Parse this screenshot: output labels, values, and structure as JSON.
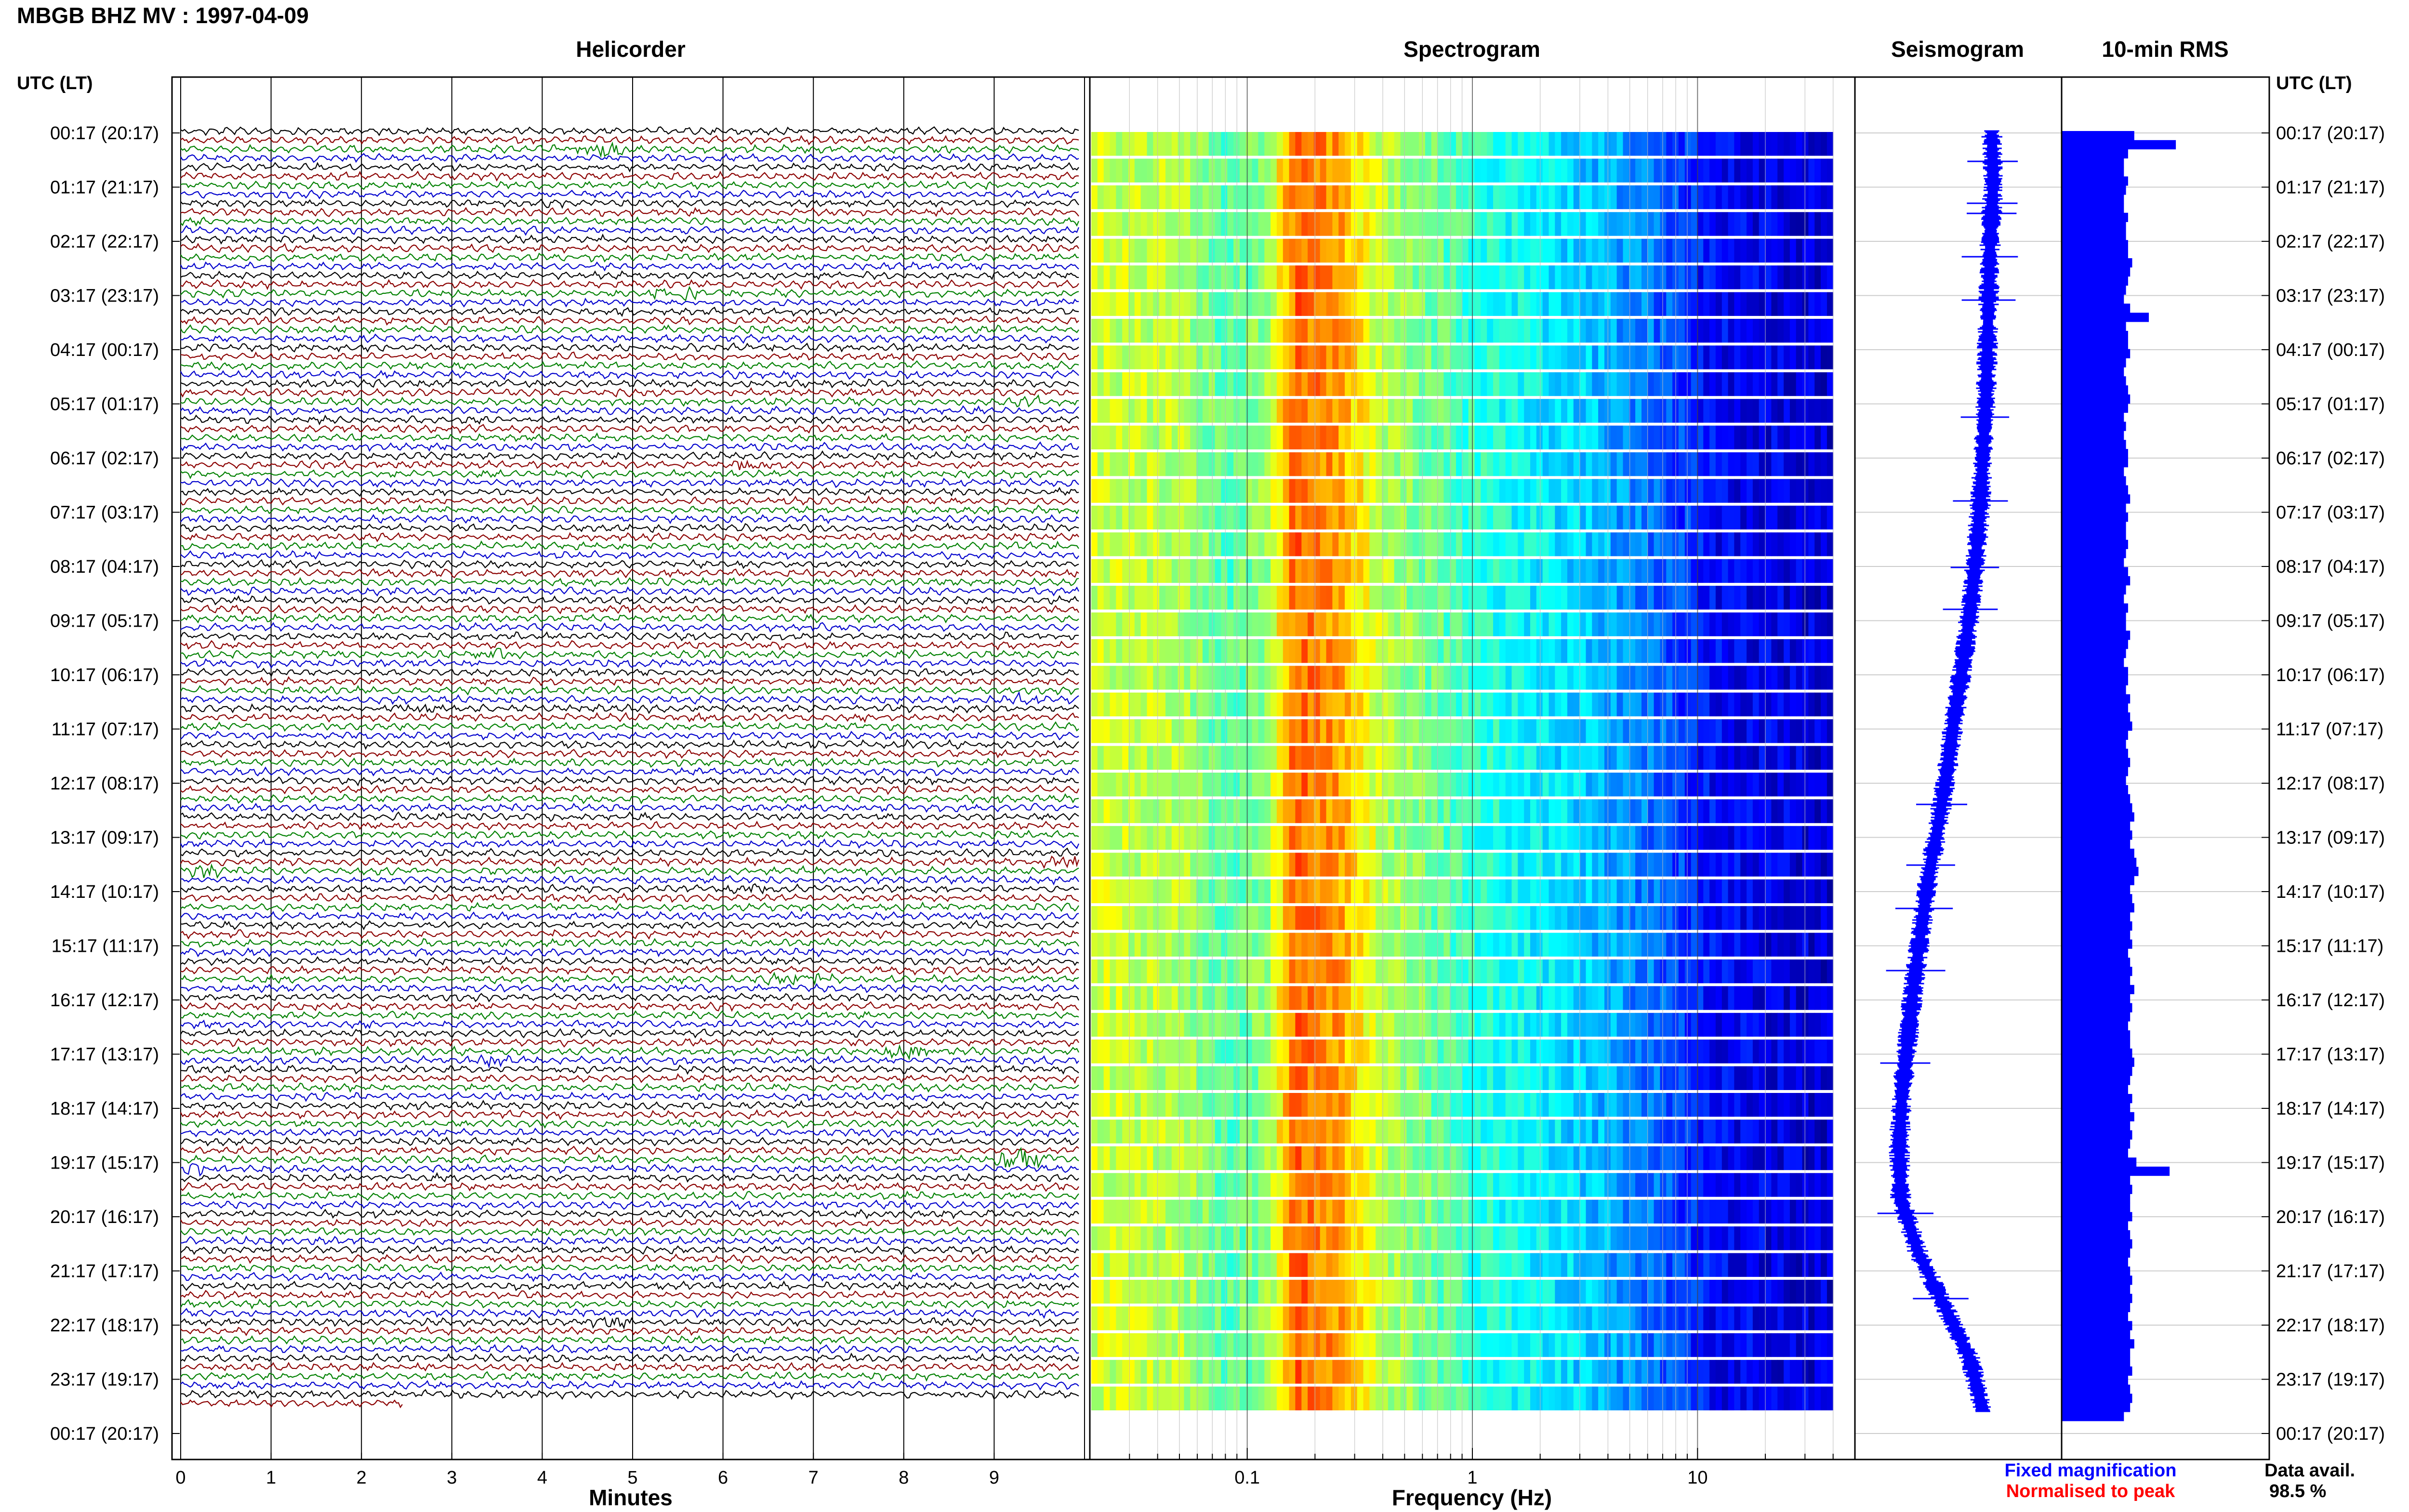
{
  "title": "MBGB BHZ MV : 1997-04-09",
  "panels": {
    "helicorder": "Helicorder",
    "spectrogram": "Spectrogram",
    "seismogram": "Seismogram",
    "rms": "10-min RMS"
  },
  "axis_header_left": "UTC (LT)",
  "axis_header_right": "UTC (LT)",
  "time_labels": [
    "00:17 (20:17)",
    "01:17 (21:17)",
    "02:17 (22:17)",
    "03:17 (23:17)",
    "04:17 (00:17)",
    "05:17 (01:17)",
    "06:17 (02:17)",
    "07:17 (03:17)",
    "08:17 (04:17)",
    "09:17 (05:17)",
    "10:17 (06:17)",
    "11:17 (07:17)",
    "12:17 (08:17)",
    "13:17 (09:17)",
    "14:17 (10:17)",
    "15:17 (11:17)",
    "16:17 (12:17)",
    "17:17 (13:17)",
    "18:17 (14:17)",
    "19:17 (15:17)",
    "20:17 (16:17)",
    "21:17 (17:17)",
    "22:17 (18:17)",
    "23:17 (19:17)",
    "00:17 (20:17)"
  ],
  "helicorder_xlabel": "Minutes",
  "spectrogram_xlabel": "Frequency (Hz)",
  "legend": {
    "fixed": "Fixed magnification",
    "normalised": "Normalised to peak",
    "data_avail_label": "Data avail.",
    "data_avail_value": "98.5 %"
  },
  "colors": {
    "trace_cycle": [
      "#000000",
      "#8b0000",
      "#008000",
      "#0000cd"
    ],
    "seismogram": "#0000ff",
    "rms_bar": "#0000ff",
    "legend_fixed": "#0000ff",
    "legend_normalised": "#ff0000"
  },
  "chart_data": [
    {
      "type": "line",
      "panel": "Helicorder",
      "xlabel": "Minutes",
      "x_ticks": [
        "0",
        "1",
        "2",
        "3",
        "4",
        "5",
        "6",
        "7",
        "8",
        "9"
      ],
      "xlim": [
        0,
        10
      ],
      "rows": 142,
      "row_minutes": 10,
      "events": [
        {
          "row": 2,
          "minute": 4.7,
          "strength": 3
        },
        {
          "row": 18,
          "minute": 5.5,
          "strength": 3
        },
        {
          "row": 30,
          "minute": 9.3,
          "strength": 2
        },
        {
          "row": 37,
          "minute": 6.2,
          "strength": 2
        },
        {
          "row": 58,
          "minute": 3.6,
          "strength": 2
        },
        {
          "row": 63,
          "minute": 9.2,
          "strength": 2
        },
        {
          "row": 64,
          "minute": 2.7,
          "strength": 2
        },
        {
          "row": 81,
          "minute": 9.8,
          "strength": 3
        },
        {
          "row": 82,
          "minute": 0.3,
          "strength": 3
        },
        {
          "row": 84,
          "minute": 6.4,
          "strength": 2
        },
        {
          "row": 94,
          "minute": 6.8,
          "strength": 3
        },
        {
          "row": 103,
          "minute": 3.5,
          "strength": 2
        },
        {
          "row": 102,
          "minute": 8.0,
          "strength": 3
        },
        {
          "row": 114,
          "minute": 9.3,
          "strength": 5
        },
        {
          "row": 115,
          "minute": 0.2,
          "strength": 2
        },
        {
          "row": 132,
          "minute": 4.8,
          "strength": 2
        }
      ]
    },
    {
      "type": "heatmap",
      "panel": "Spectrogram",
      "xlabel": "Frequency (Hz)",
      "x_scale": "log",
      "xlim": [
        0.02,
        50
      ],
      "x_ticks": [
        "0.1",
        "1",
        "10"
      ],
      "colormap": "jet",
      "rows": 24,
      "profile": [
        {
          "f": 0.02,
          "level": 0.58
        },
        {
          "f": 0.05,
          "level": 0.55
        },
        {
          "f": 0.08,
          "level": 0.45
        },
        {
          "f": 0.12,
          "level": 0.52
        },
        {
          "f": 0.16,
          "level": 0.78
        },
        {
          "f": 0.25,
          "level": 0.72
        },
        {
          "f": 0.4,
          "level": 0.55
        },
        {
          "f": 1.0,
          "level": 0.42
        },
        {
          "f": 3.0,
          "level": 0.33
        },
        {
          "f": 6.0,
          "level": 0.24
        },
        {
          "f": 12.0,
          "level": 0.12
        },
        {
          "f": 40.0,
          "level": 0.08
        }
      ]
    },
    {
      "type": "line",
      "panel": "Seismogram",
      "series": [
        {
          "values": [
            0.68,
            0.69,
            0.67,
            0.66,
            0.65,
            0.64,
            0.62,
            0.6,
            0.57,
            0.53,
            0.48,
            0.42,
            0.37,
            0.31,
            0.24,
            0.19,
            0.14,
            0.1,
            0.06,
            0.04,
            0.05,
            0.17,
            0.35,
            0.53,
            0.62
          ]
        }
      ]
    },
    {
      "type": "bar",
      "panel": "10-min RMS",
      "orientation": "horizontal",
      "values": [
        0.35,
        0.55,
        0.32,
        0.3,
        0.3,
        0.32,
        0.31,
        0.3,
        0.3,
        0.32,
        0.31,
        0.31,
        0.32,
        0.32,
        0.34,
        0.33,
        0.32,
        0.31,
        0.3,
        0.33,
        0.42,
        0.31,
        0.32,
        0.32,
        0.33,
        0.31,
        0.3,
        0.31,
        0.32,
        0.33,
        0.32,
        0.3,
        0.31,
        0.3,
        0.31,
        0.32,
        0.32,
        0.3,
        0.31,
        0.32,
        0.33,
        0.31,
        0.32,
        0.31,
        0.31,
        0.32,
        0.31,
        0.3,
        0.32,
        0.33,
        0.31,
        0.3,
        0.32,
        0.31,
        0.31,
        0.33,
        0.32,
        0.31,
        0.3,
        0.32,
        0.32,
        0.31,
        0.33,
        0.32,
        0.33,
        0.34,
        0.32,
        0.31,
        0.32,
        0.33,
        0.32,
        0.31,
        0.32,
        0.33,
        0.34,
        0.35,
        0.33,
        0.34,
        0.33,
        0.35,
        0.36,
        0.37,
        0.35,
        0.33,
        0.34,
        0.35,
        0.33,
        0.34,
        0.33,
        0.34,
        0.32,
        0.33,
        0.34,
        0.33,
        0.35,
        0.33,
        0.34,
        0.33,
        0.32,
        0.33,
        0.33,
        0.34,
        0.35,
        0.34,
        0.33,
        0.32,
        0.34,
        0.33,
        0.35,
        0.33,
        0.34,
        0.33,
        0.32,
        0.36,
        0.52,
        0.33,
        0.34,
        0.33,
        0.33,
        0.34,
        0.32,
        0.33,
        0.34,
        0.33,
        0.32,
        0.33,
        0.34,
        0.33,
        0.34,
        0.33,
        0.32,
        0.34,
        0.33,
        0.35,
        0.33,
        0.33,
        0.34,
        0.32,
        0.33,
        0.34,
        0.33,
        0.3
      ]
    }
  ]
}
